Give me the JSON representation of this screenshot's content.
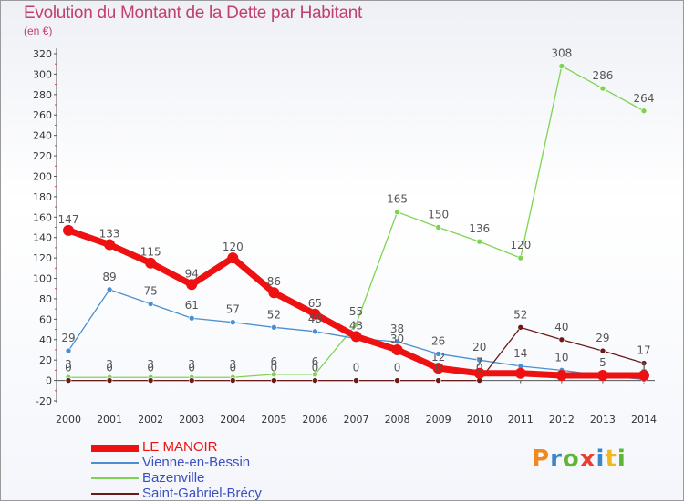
{
  "title": "Evolution du Montant de la Dette par Habitant",
  "unit": "(en €)",
  "logo": {
    "letters": [
      "P",
      "r",
      "o",
      "x",
      "i",
      "t",
      "i"
    ],
    "colors": [
      "#f08a1c",
      "#3a86c8",
      "#5fb536",
      "#e8402c",
      "#3a86c8",
      "#f0b81c",
      "#5fb536"
    ]
  },
  "chart_data": {
    "type": "line",
    "x": [
      "2000",
      "2001",
      "2002",
      "2003",
      "2004",
      "2005",
      "2006",
      "2007",
      "2008",
      "2009",
      "2010",
      "2011",
      "2012",
      "2013",
      "2014"
    ],
    "ylim": [
      -20,
      320
    ],
    "yticks": [
      -20,
      0,
      20,
      40,
      60,
      80,
      100,
      120,
      140,
      160,
      180,
      200,
      220,
      240,
      260,
      280,
      300,
      320
    ],
    "grid": false,
    "legend_position": "bottom-left",
    "series": [
      {
        "name": "LE MANOIR",
        "color": "#ee1111",
        "values": [
          147,
          133,
          115,
          94,
          120,
          86,
          65,
          43,
          30,
          12,
          7,
          7,
          5,
          5,
          5
        ],
        "labels": [
          "147",
          "133",
          "115",
          "94",
          "120",
          "86",
          "65",
          "43",
          "30",
          "12",
          "7",
          "",
          "",
          "",
          ""
        ]
      },
      {
        "name": "Vienne-en-Bessin",
        "color": "#4a90d0",
        "values": [
          29,
          89,
          75,
          61,
          57,
          52,
          48,
          41,
          38,
          26,
          20,
          14,
          10,
          5,
          1
        ],
        "labels": [
          "29",
          "89",
          "75",
          "61",
          "57",
          "52",
          "48",
          "",
          "38",
          "26",
          "20",
          "14",
          "10",
          "5",
          "1"
        ]
      },
      {
        "name": "Bazenville",
        "color": "#7ed451",
        "values": [
          3,
          3,
          3,
          3,
          3,
          6,
          6,
          55,
          165,
          150,
          136,
          120,
          308,
          286,
          264
        ],
        "labels": [
          "3",
          "3",
          "3",
          "3",
          "3",
          "6",
          "6",
          "55",
          "165",
          "150",
          "136",
          "120",
          "308",
          "286",
          "264"
        ]
      },
      {
        "name": "Saint-Gabriel-Brécy",
        "color": "#6b1a1a",
        "values": [
          0,
          0,
          0,
          0,
          0,
          0,
          0,
          0,
          0,
          0,
          0,
          52,
          40,
          29,
          17
        ],
        "labels": [
          "0",
          "0",
          "0",
          "0",
          "0",
          "0",
          "0",
          "0",
          "0",
          "0",
          "0",
          "52",
          "40",
          "29",
          "17"
        ]
      }
    ]
  }
}
